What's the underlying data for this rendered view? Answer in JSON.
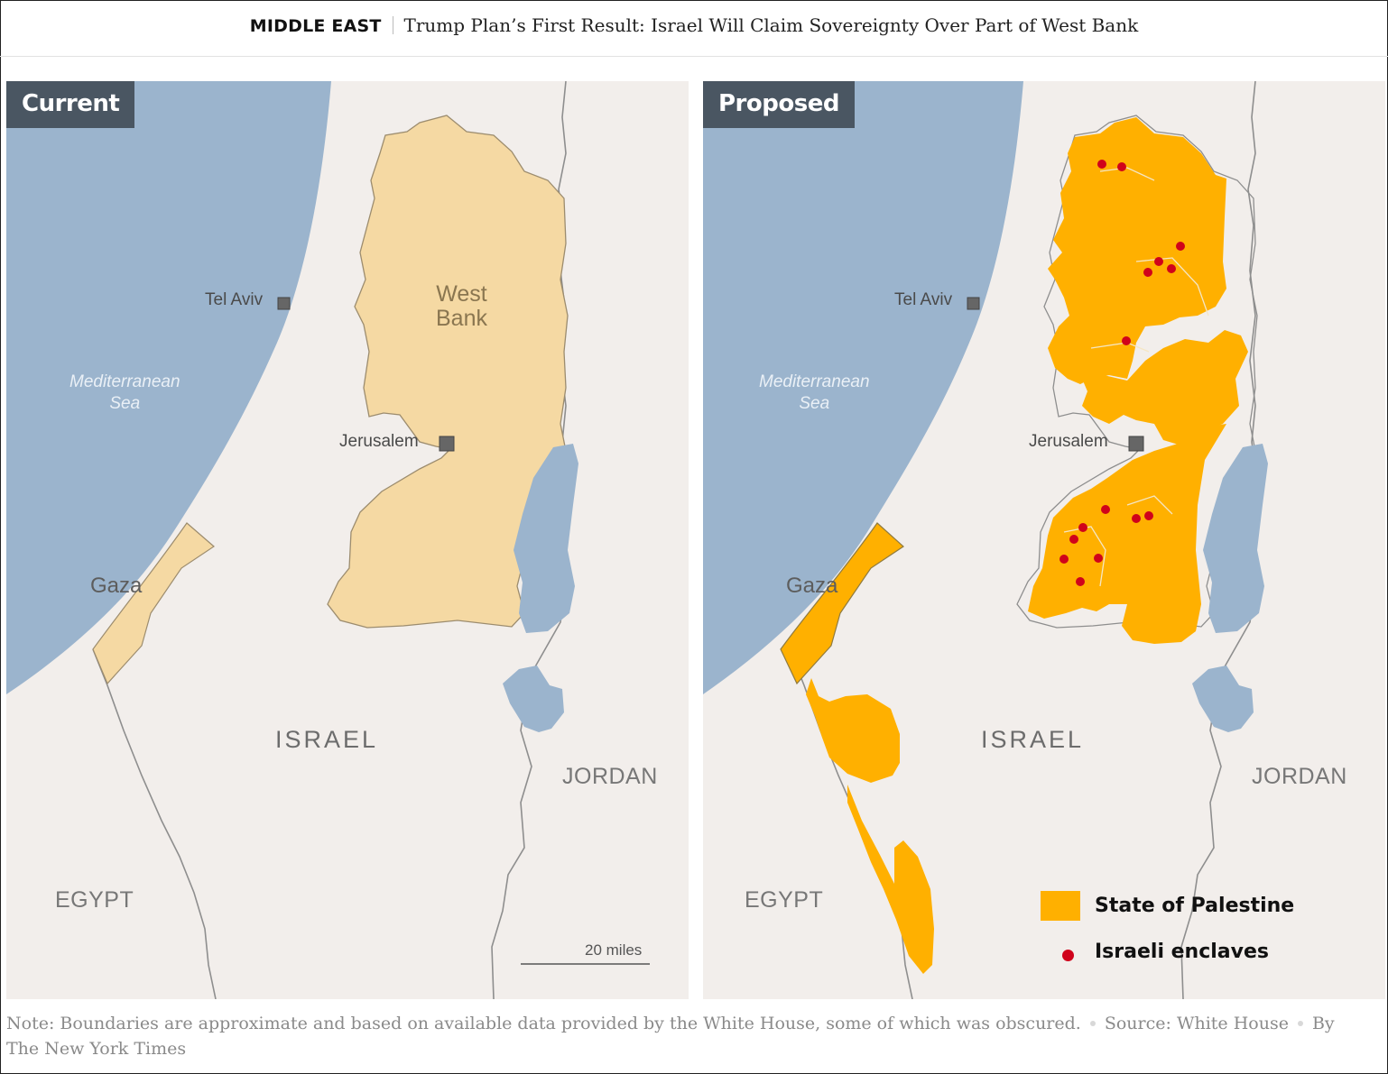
{
  "header": {
    "kicker": "MIDDLE EAST",
    "headline": "Trump Plan’s First Result: Israel Will Claim Sovereignty Over Part of West Bank"
  },
  "colors": {
    "land": "#f2eeeb",
    "sea": "#9bb4cd",
    "west_bank_current": "#f5d9a3",
    "palestine": "#ffb000",
    "enclave": "#d0021b",
    "tag_bg": "#4a5662"
  },
  "panels": [
    {
      "tag": "Current",
      "labels": {
        "tel_aviv": "Tel Aviv",
        "sea": [
          "Mediterranean",
          "Sea"
        ],
        "jerusalem": "Jerusalem",
        "west_bank": [
          "West",
          "Bank"
        ],
        "gaza": "Gaza",
        "israel": "ISRAEL",
        "jordan": "JORDAN",
        "egypt": "EGYPT"
      },
      "scale": "20 miles"
    },
    {
      "tag": "Proposed",
      "labels": {
        "tel_aviv": "Tel Aviv",
        "sea": [
          "Mediterranean",
          "Sea"
        ],
        "jerusalem": "Jerusalem",
        "gaza": "Gaza",
        "israel": "ISRAEL",
        "jordan": "JORDAN",
        "egypt": "EGYPT"
      }
    }
  ],
  "legend": {
    "palestine": "State of Palestine",
    "enclaves": "Israeli enclaves"
  },
  "footer": {
    "note": "Note: Boundaries are approximate and based on available data provided by the White House, some of which was obscured.",
    "source": "Source: White House",
    "byline": "By The New York Times"
  }
}
